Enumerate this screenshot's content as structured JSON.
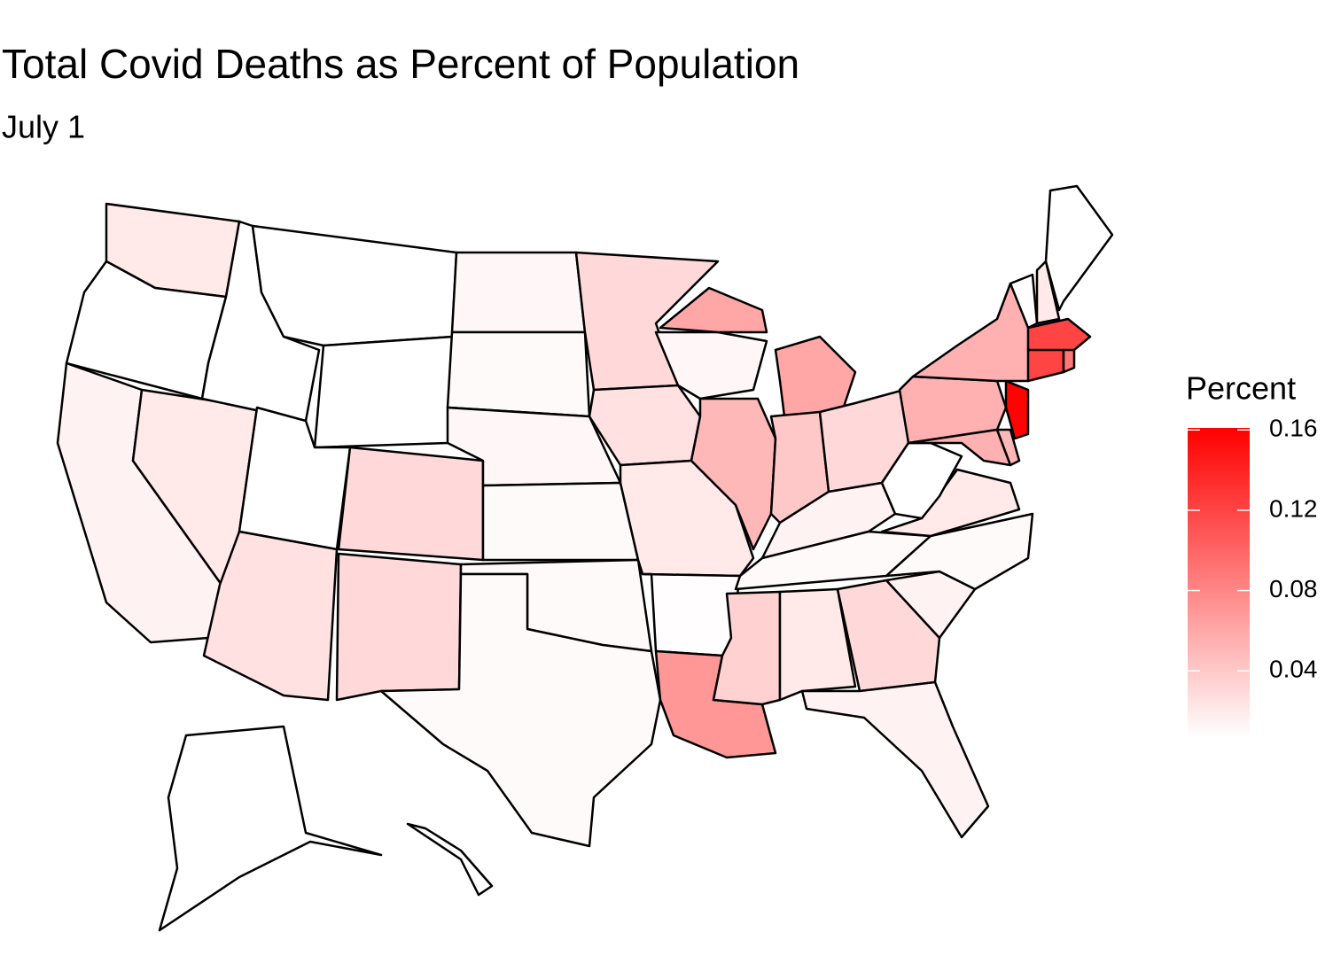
{
  "chart_data": {
    "type": "choropleth",
    "title": "Total Covid Deaths as Percent of Population",
    "subtitle": "July 1",
    "legend_title": "Percent",
    "values": [
      0.02,
      0.005,
      0.015,
      0.02,
      0.007,
      0.003,
      0.003,
      0.007,
      0.03,
      0.025,
      0.03,
      0.012,
      0.01,
      0.012,
      0.01,
      0.01,
      0.01,
      0.03,
      0.025,
      0.02,
      0.008,
      0.07,
      0.012,
      0.05,
      0.06,
      0.04,
      0.03,
      0.015,
      0.01,
      0.035,
      0.02,
      0.03,
      0.015,
      0.015,
      0.01,
      0.02,
      0.005,
      0.055,
      0.055,
      0.05,
      0.16,
      0.055,
      0.12,
      0.09,
      0.12,
      0.008,
      0.02,
      0.005,
      0.002,
      0.002
    ],
    "colorbar_lim": [
      0.007,
      0.161
    ],
    "colorbar_ticks": [
      0.04,
      0.08,
      0.12,
      0.16
    ],
    "color_low": "#ffffff",
    "color_high": "#ff0000"
  }
}
